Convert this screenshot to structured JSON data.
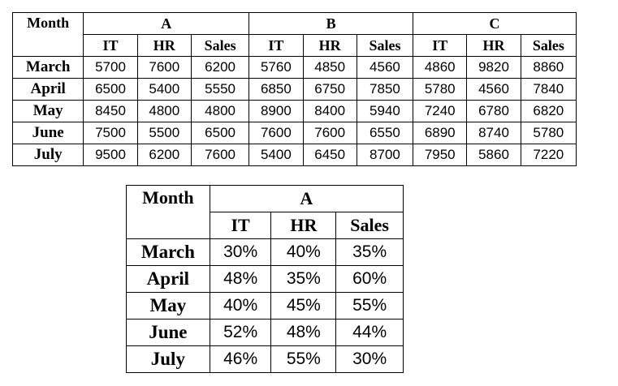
{
  "table1": {
    "month_header": "Month",
    "groups": [
      "A",
      "B",
      "C"
    ],
    "subheaders": [
      "IT",
      "HR",
      "Sales",
      "IT",
      "HR",
      "Sales",
      "IT",
      "HR",
      "Sales"
    ],
    "rows": [
      {
        "month": "March",
        "values": [
          "5700",
          "7600",
          "6200",
          "5760",
          "4850",
          "4560",
          "4860",
          "9820",
          "8860"
        ]
      },
      {
        "month": "April",
        "values": [
          "6500",
          "5400",
          "5550",
          "6850",
          "6750",
          "7850",
          "5780",
          "4560",
          "7840"
        ]
      },
      {
        "month": "May",
        "values": [
          "8450",
          "4800",
          "4800",
          "8900",
          "8400",
          "5940",
          "7240",
          "6780",
          "6820"
        ]
      },
      {
        "month": "June",
        "values": [
          "7500",
          "5500",
          "6500",
          "7600",
          "7600",
          "6550",
          "6890",
          "8740",
          "5780"
        ]
      },
      {
        "month": "July",
        "values": [
          "9500",
          "6200",
          "7600",
          "5400",
          "6450",
          "8700",
          "7950",
          "5860",
          "7220"
        ]
      }
    ]
  },
  "table2": {
    "month_header": "Month",
    "group": "A",
    "subheaders": [
      "IT",
      "HR",
      "Sales"
    ],
    "rows": [
      {
        "month": "March",
        "values": [
          "30%",
          "40%",
          "35%"
        ]
      },
      {
        "month": "April",
        "values": [
          "48%",
          "35%",
          "60%"
        ]
      },
      {
        "month": "May",
        "values": [
          "40%",
          "45%",
          "55%"
        ]
      },
      {
        "month": "June",
        "values": [
          "52%",
          "48%",
          "44%"
        ]
      },
      {
        "month": "July",
        "values": [
          "46%",
          "55%",
          "30%"
        ]
      }
    ]
  }
}
